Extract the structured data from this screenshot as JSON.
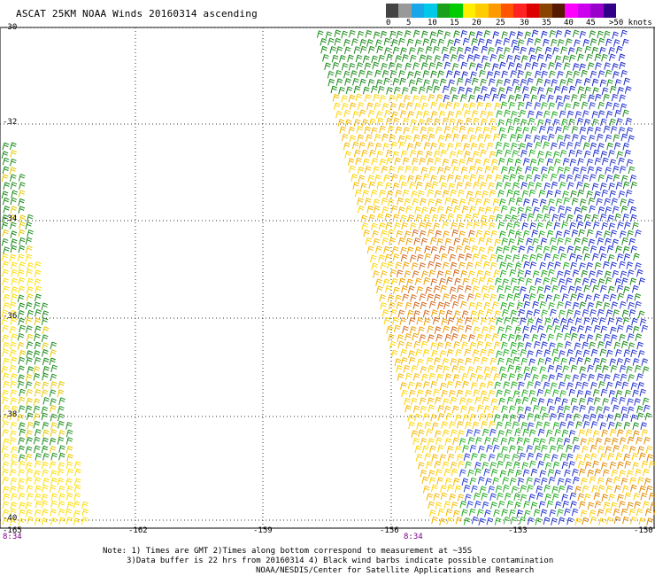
{
  "title": "ASCAT 25KM NOAA Winds 20160314 ascending",
  "legend": {
    "colors": [
      "#444444",
      "#999999",
      "#1aa7e8",
      "#00c8e8",
      "#1aa01a",
      "#00cc00",
      "#ffee00",
      "#ffcc00",
      "#ff9900",
      "#ff5500",
      "#ff2222",
      "#dd0000",
      "#884400",
      "#551a00",
      "#ff00ff",
      "#cc00ee",
      "#9900cc",
      "#330088"
    ],
    "labels": [
      "0",
      "5",
      "10",
      "15",
      "20",
      "25",
      "30",
      "35",
      "40",
      "45",
      ">50 knots"
    ]
  },
  "axes": {
    "lat_labels": [
      "-30",
      "-32",
      "-34",
      "-36",
      "-38",
      "-40"
    ],
    "lon_labels": [
      "-165",
      "-162",
      "-159",
      "-156",
      "-153",
      "-150"
    ],
    "time_labels": [
      "8:34",
      "8:34"
    ]
  },
  "notes": {
    "line1": "Note: 1) Times are GMT 2)Times along bottom correspond to measurement at ~35S",
    "line2": "3)Data buffer is 22 hrs from 20160314 4) Black wind barbs indicate possible contamination",
    "line3": "NOAA/NESDIS/Center for Satellite Applications and Research"
  }
}
